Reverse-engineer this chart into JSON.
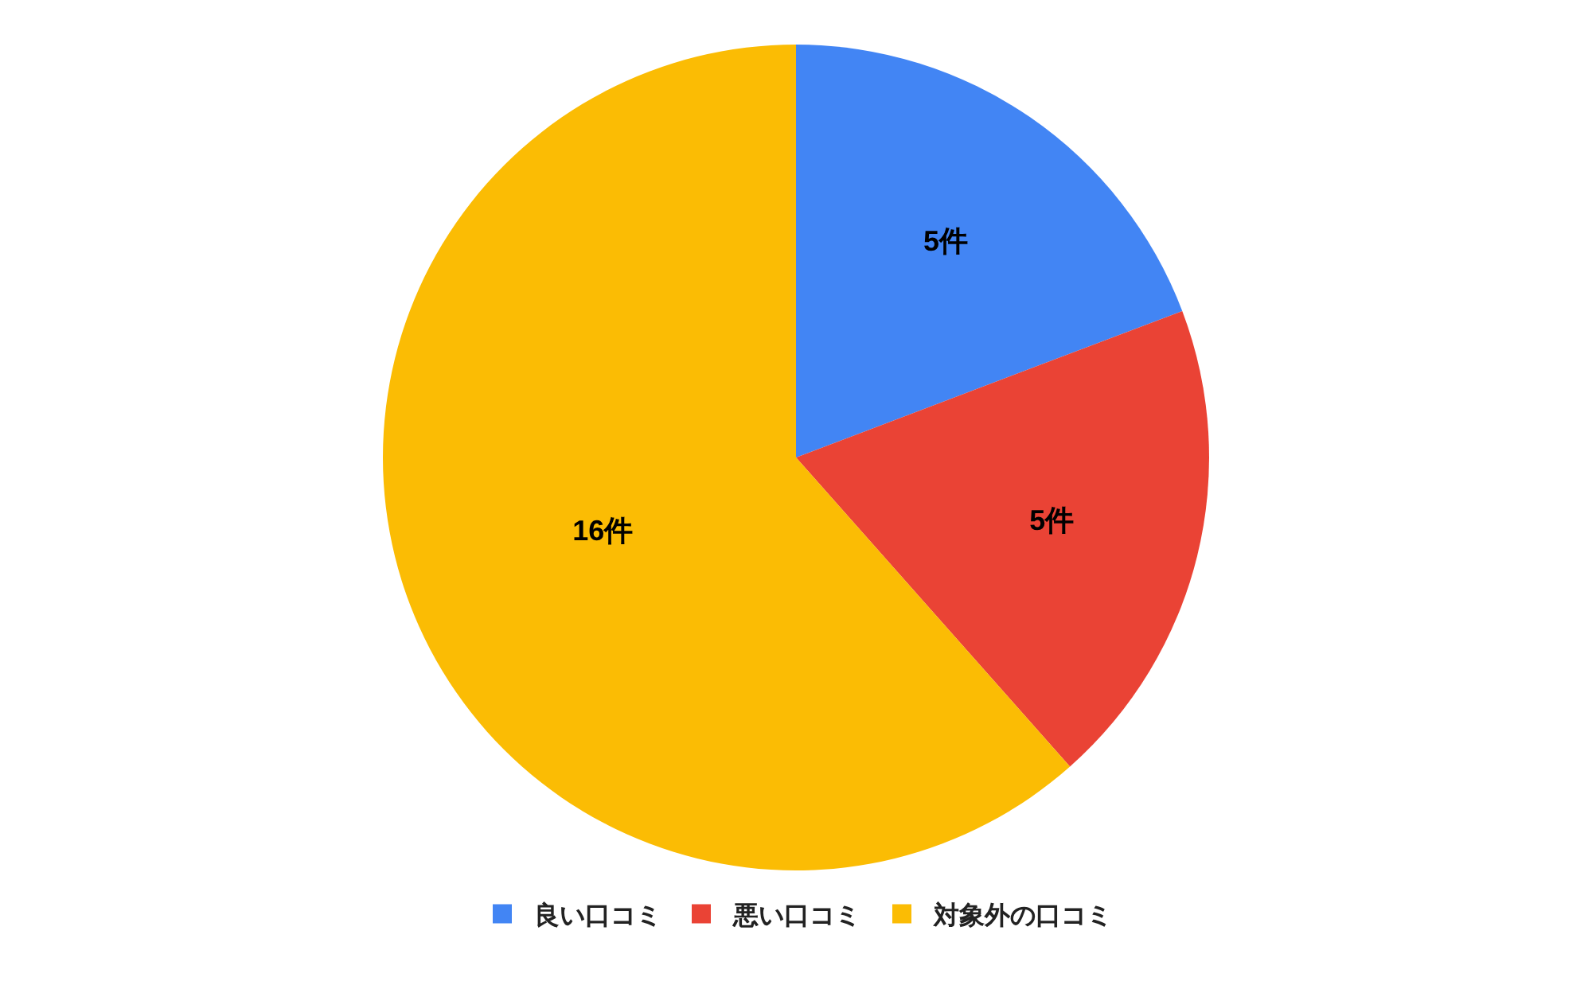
{
  "chart_data": {
    "type": "pie",
    "categories": [
      "良い口コミ",
      "悪い口コミ",
      "対象外の口コミ"
    ],
    "values": [
      5,
      5,
      16
    ],
    "colors": [
      "#4285f4",
      "#ea4335",
      "#fbbc04"
    ],
    "value_labels": [
      "5件",
      "5件",
      "16件"
    ],
    "legend": "bottom"
  }
}
